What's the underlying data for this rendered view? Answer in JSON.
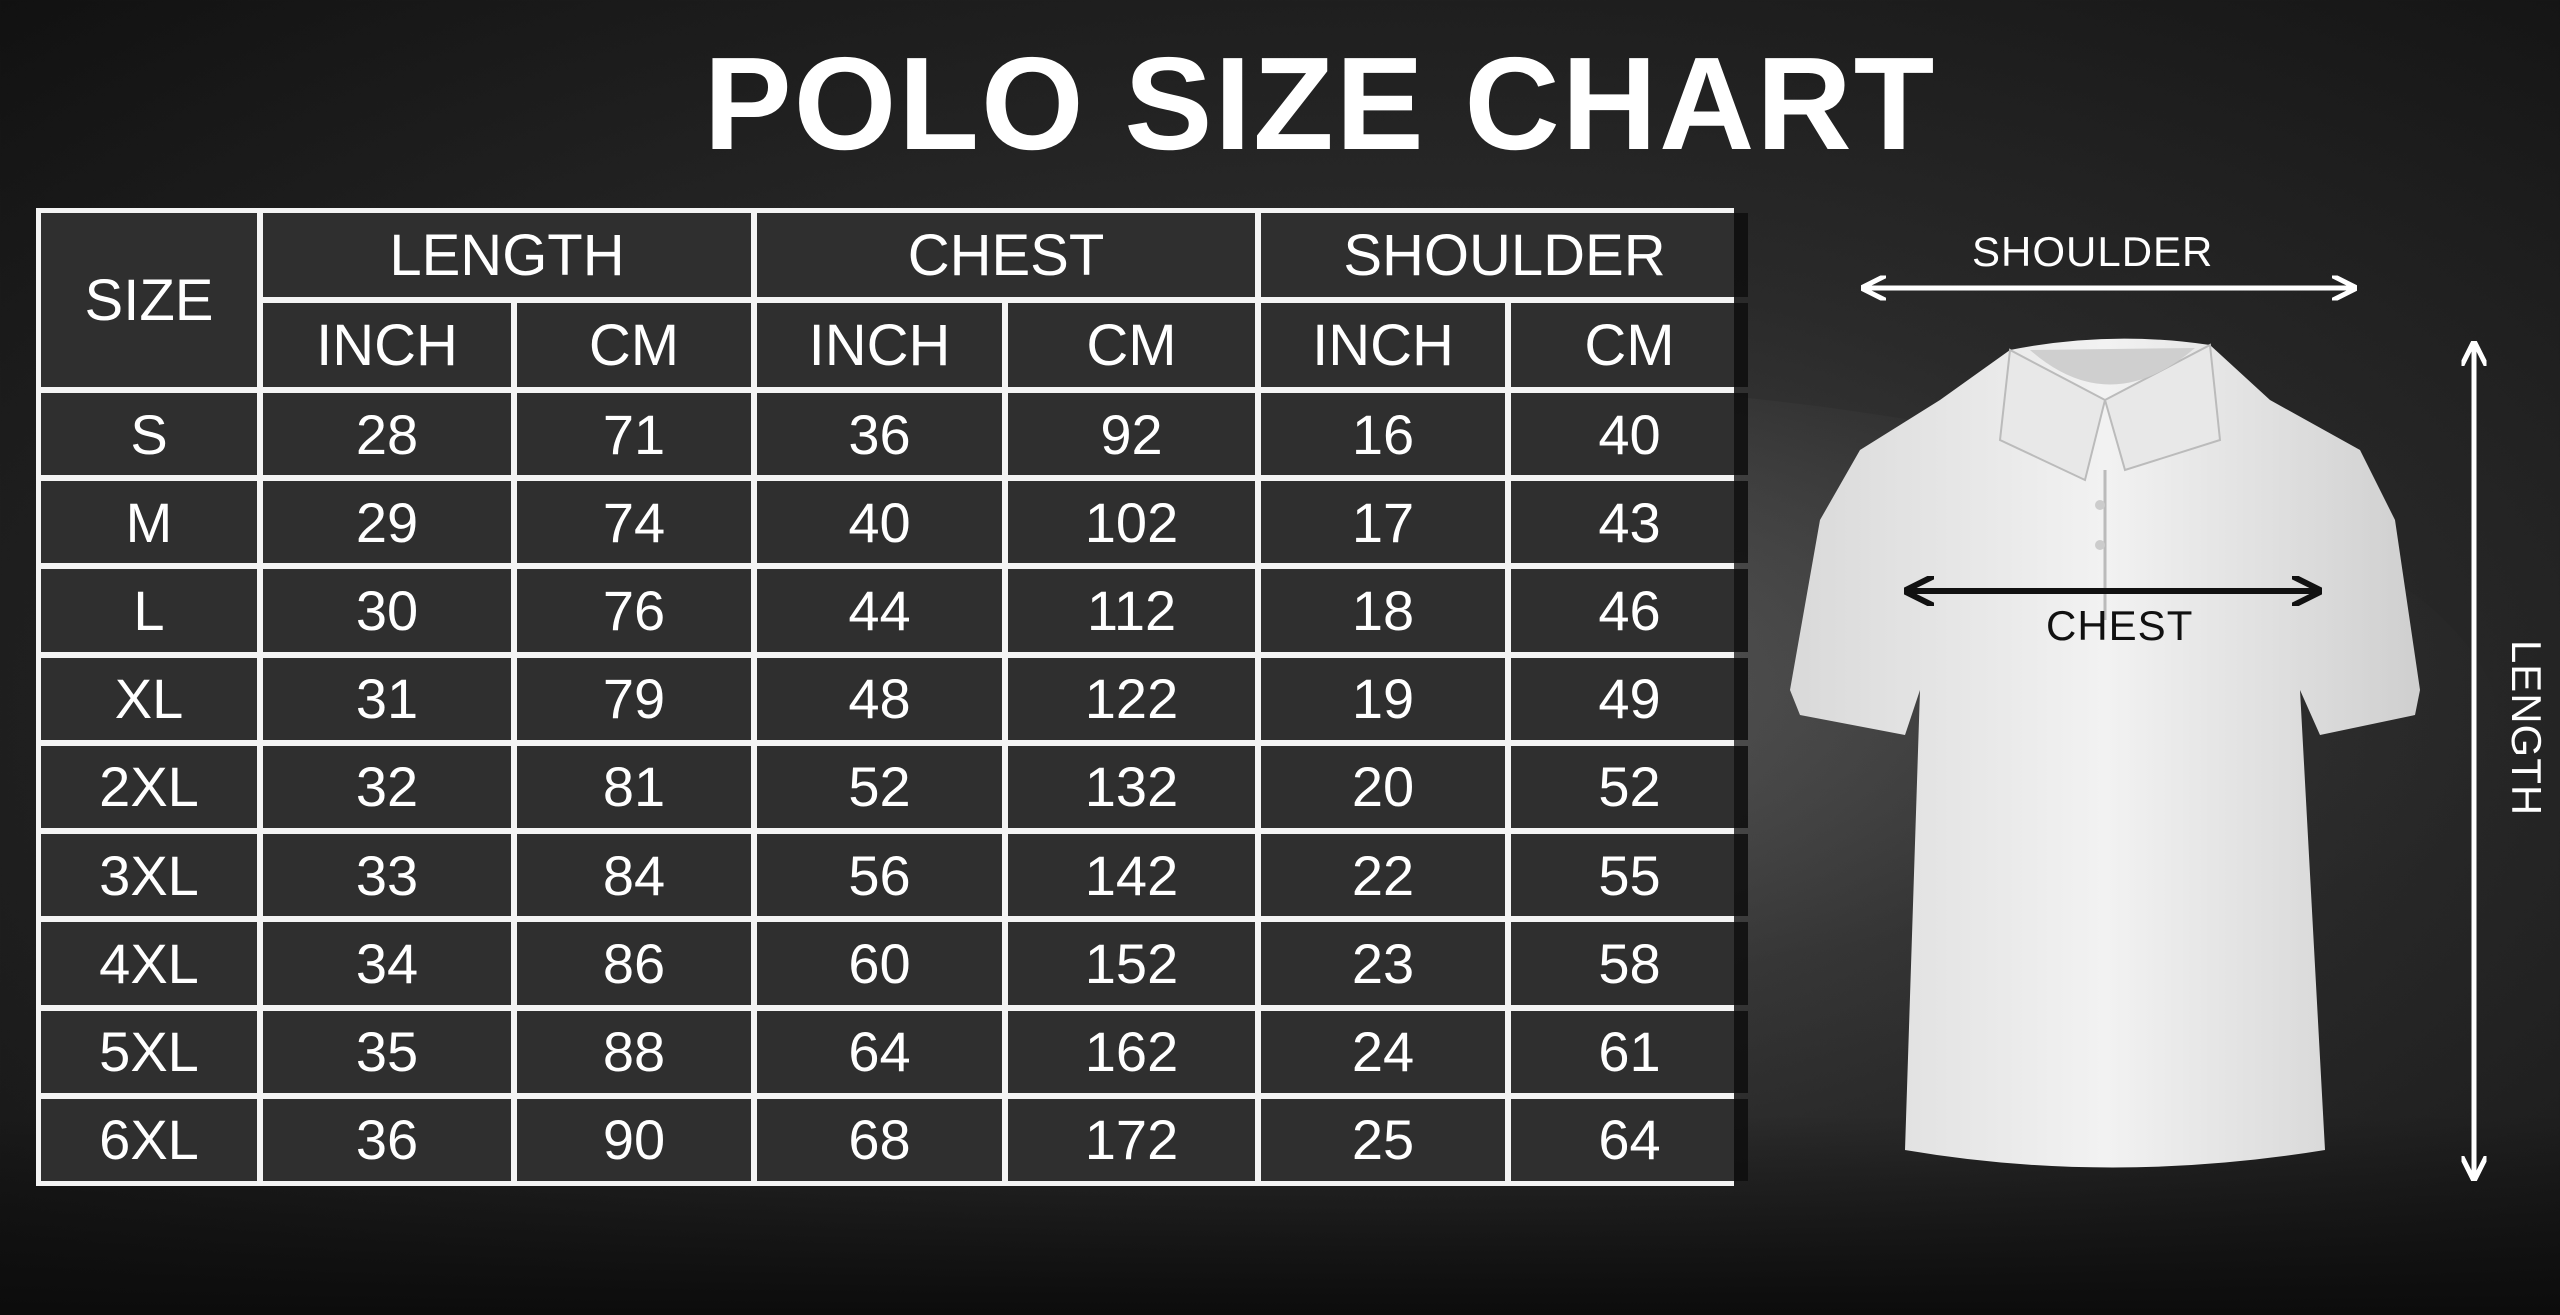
{
  "title": "POLO SIZE CHART",
  "table": {
    "size_header": "SIZE",
    "groups": [
      "LENGTH",
      "CHEST",
      "SHOULDER"
    ],
    "units": [
      "INCH",
      "CM",
      "INCH",
      "CM",
      "INCH",
      "CM"
    ],
    "rows": [
      [
        "S",
        "28",
        "71",
        "36",
        "92",
        "16",
        "40"
      ],
      [
        "M",
        "29",
        "74",
        "40",
        "102",
        "17",
        "43"
      ],
      [
        "L",
        "30",
        "76",
        "44",
        "112",
        "18",
        "46"
      ],
      [
        "XL",
        "31",
        "79",
        "48",
        "122",
        "19",
        "49"
      ],
      [
        "2XL",
        "32",
        "81",
        "52",
        "132",
        "20",
        "52"
      ],
      [
        "3XL",
        "33",
        "84",
        "56",
        "142",
        "22",
        "55"
      ],
      [
        "4XL",
        "34",
        "86",
        "60",
        "152",
        "23",
        "58"
      ],
      [
        "5XL",
        "35",
        "88",
        "64",
        "162",
        "24",
        "61"
      ],
      [
        "6XL",
        "36",
        "90",
        "68",
        "172",
        "25",
        "64"
      ]
    ]
  },
  "diagram": {
    "shoulder_label": "SHOULDER",
    "chest_label": "CHEST",
    "length_label": "LENGTH"
  }
}
